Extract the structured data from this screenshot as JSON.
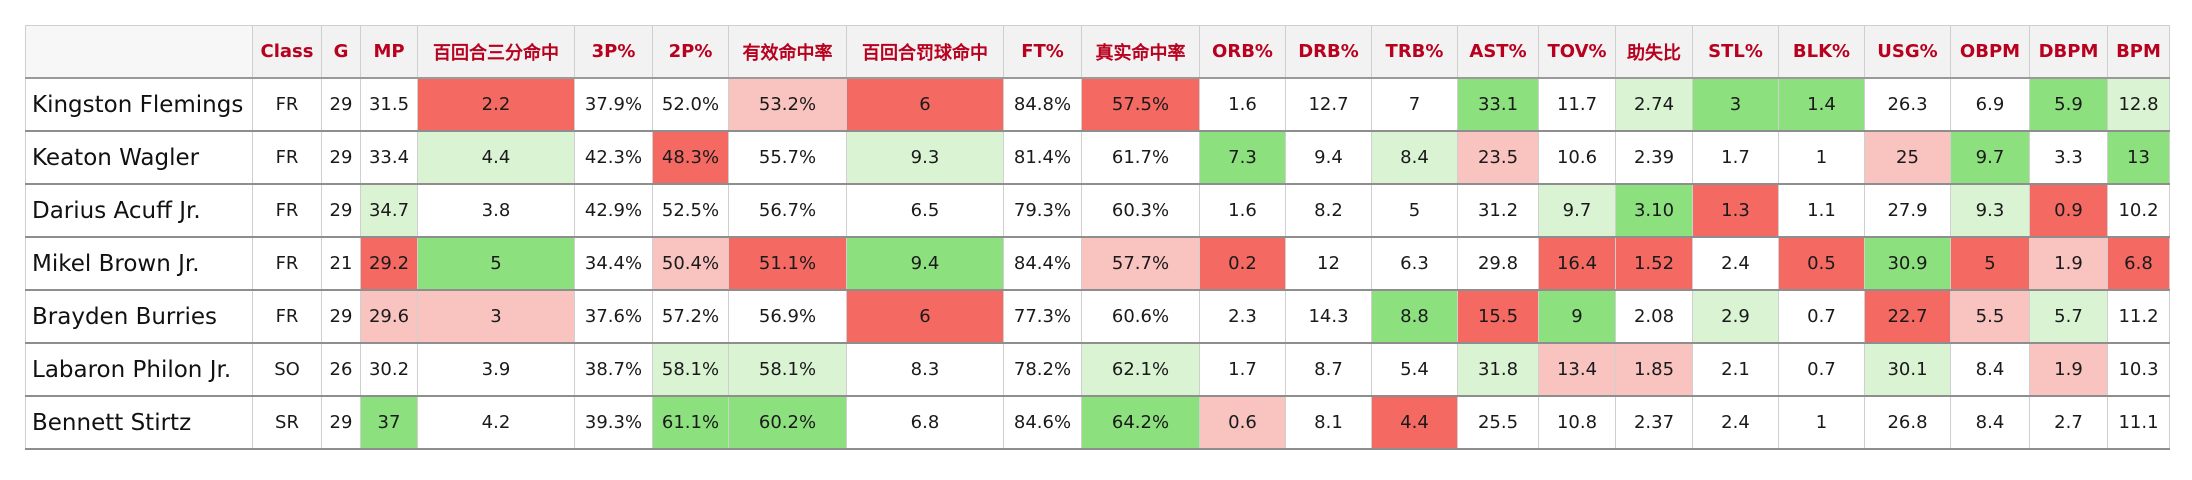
{
  "table": {
    "columns": [
      "Class",
      "G",
      "MP",
      "百回合三分命中",
      "3P%",
      "2P%",
      "有效命中率",
      "百回合罚球命中",
      "FT%",
      "真实命中率",
      "ORB%",
      "DRB%",
      "TRB%",
      "AST%",
      "TOV%",
      "助失比",
      "STL%",
      "BLK%",
      "USG%",
      "OBPM",
      "DBPM",
      "BPM"
    ],
    "rows": [
      {
        "name": "Kingston Flemings",
        "cells": [
          {
            "v": "FR",
            "c": ""
          },
          {
            "v": "29",
            "c": ""
          },
          {
            "v": "31.5",
            "c": ""
          },
          {
            "v": "2.2",
            "c": "r1"
          },
          {
            "v": "37.9%",
            "c": ""
          },
          {
            "v": "52.0%",
            "c": ""
          },
          {
            "v": "53.2%",
            "c": "r2"
          },
          {
            "v": "6",
            "c": "r1"
          },
          {
            "v": "84.8%",
            "c": ""
          },
          {
            "v": "57.5%",
            "c": "r1"
          },
          {
            "v": "1.6",
            "c": ""
          },
          {
            "v": "12.7",
            "c": ""
          },
          {
            "v": "7",
            "c": ""
          },
          {
            "v": "33.1",
            "c": "g1"
          },
          {
            "v": "11.7",
            "c": ""
          },
          {
            "v": "2.74",
            "c": "g2"
          },
          {
            "v": "3",
            "c": "g1"
          },
          {
            "v": "1.4",
            "c": "g1"
          },
          {
            "v": "26.3",
            "c": ""
          },
          {
            "v": "6.9",
            "c": ""
          },
          {
            "v": "5.9",
            "c": "g1"
          },
          {
            "v": "12.8",
            "c": "g2"
          }
        ]
      },
      {
        "name": "Keaton Wagler",
        "cells": [
          {
            "v": "FR",
            "c": ""
          },
          {
            "v": "29",
            "c": ""
          },
          {
            "v": "33.4",
            "c": ""
          },
          {
            "v": "4.4",
            "c": "g2"
          },
          {
            "v": "42.3%",
            "c": ""
          },
          {
            "v": "48.3%",
            "c": "r1"
          },
          {
            "v": "55.7%",
            "c": ""
          },
          {
            "v": "9.3",
            "c": "g2"
          },
          {
            "v": "81.4%",
            "c": ""
          },
          {
            "v": "61.7%",
            "c": ""
          },
          {
            "v": "7.3",
            "c": "g1"
          },
          {
            "v": "9.4",
            "c": ""
          },
          {
            "v": "8.4",
            "c": "g2"
          },
          {
            "v": "23.5",
            "c": "r2"
          },
          {
            "v": "10.6",
            "c": ""
          },
          {
            "v": "2.39",
            "c": ""
          },
          {
            "v": "1.7",
            "c": ""
          },
          {
            "v": "1",
            "c": ""
          },
          {
            "v": "25",
            "c": "r2"
          },
          {
            "v": "9.7",
            "c": "g1"
          },
          {
            "v": "3.3",
            "c": ""
          },
          {
            "v": "13",
            "c": "g1"
          }
        ]
      },
      {
        "name": "Darius Acuff Jr.",
        "cells": [
          {
            "v": "FR",
            "c": ""
          },
          {
            "v": "29",
            "c": ""
          },
          {
            "v": "34.7",
            "c": "g2"
          },
          {
            "v": "3.8",
            "c": ""
          },
          {
            "v": "42.9%",
            "c": ""
          },
          {
            "v": "52.5%",
            "c": ""
          },
          {
            "v": "56.7%",
            "c": ""
          },
          {
            "v": "6.5",
            "c": ""
          },
          {
            "v": "79.3%",
            "c": ""
          },
          {
            "v": "60.3%",
            "c": ""
          },
          {
            "v": "1.6",
            "c": ""
          },
          {
            "v": "8.2",
            "c": ""
          },
          {
            "v": "5",
            "c": ""
          },
          {
            "v": "31.2",
            "c": ""
          },
          {
            "v": "9.7",
            "c": "g2"
          },
          {
            "v": "3.10",
            "c": "g1"
          },
          {
            "v": "1.3",
            "c": "r1"
          },
          {
            "v": "1.1",
            "c": ""
          },
          {
            "v": "27.9",
            "c": ""
          },
          {
            "v": "9.3",
            "c": "g2"
          },
          {
            "v": "0.9",
            "c": "r1"
          },
          {
            "v": "10.2",
            "c": ""
          }
        ]
      },
      {
        "name": "Mikel Brown Jr.",
        "cells": [
          {
            "v": "FR",
            "c": ""
          },
          {
            "v": "21",
            "c": ""
          },
          {
            "v": "29.2",
            "c": "r1"
          },
          {
            "v": "5",
            "c": "g1"
          },
          {
            "v": "34.4%",
            "c": ""
          },
          {
            "v": "50.4%",
            "c": "r2"
          },
          {
            "v": "51.1%",
            "c": "r1"
          },
          {
            "v": "9.4",
            "c": "g1"
          },
          {
            "v": "84.4%",
            "c": ""
          },
          {
            "v": "57.7%",
            "c": "r2"
          },
          {
            "v": "0.2",
            "c": "r1"
          },
          {
            "v": "12",
            "c": ""
          },
          {
            "v": "6.3",
            "c": ""
          },
          {
            "v": "29.8",
            "c": ""
          },
          {
            "v": "16.4",
            "c": "r1"
          },
          {
            "v": "1.52",
            "c": "r1"
          },
          {
            "v": "2.4",
            "c": ""
          },
          {
            "v": "0.5",
            "c": "r1"
          },
          {
            "v": "30.9",
            "c": "g1"
          },
          {
            "v": "5",
            "c": "r1"
          },
          {
            "v": "1.9",
            "c": "r2"
          },
          {
            "v": "6.8",
            "c": "r1"
          }
        ]
      },
      {
        "name": "Brayden Burries",
        "cells": [
          {
            "v": "FR",
            "c": ""
          },
          {
            "v": "29",
            "c": ""
          },
          {
            "v": "29.6",
            "c": "r2"
          },
          {
            "v": "3",
            "c": "r2"
          },
          {
            "v": "37.6%",
            "c": ""
          },
          {
            "v": "57.2%",
            "c": ""
          },
          {
            "v": "56.9%",
            "c": ""
          },
          {
            "v": "6",
            "c": "r1"
          },
          {
            "v": "77.3%",
            "c": ""
          },
          {
            "v": "60.6%",
            "c": ""
          },
          {
            "v": "2.3",
            "c": ""
          },
          {
            "v": "14.3",
            "c": ""
          },
          {
            "v": "8.8",
            "c": "g1"
          },
          {
            "v": "15.5",
            "c": "r1"
          },
          {
            "v": "9",
            "c": "g1"
          },
          {
            "v": "2.08",
            "c": ""
          },
          {
            "v": "2.9",
            "c": "g2"
          },
          {
            "v": "0.7",
            "c": ""
          },
          {
            "v": "22.7",
            "c": "r1"
          },
          {
            "v": "5.5",
            "c": "r2"
          },
          {
            "v": "5.7",
            "c": "g2"
          },
          {
            "v": "11.2",
            "c": ""
          }
        ]
      },
      {
        "name": "Labaron Philon Jr.",
        "cells": [
          {
            "v": "SO",
            "c": ""
          },
          {
            "v": "26",
            "c": ""
          },
          {
            "v": "30.2",
            "c": ""
          },
          {
            "v": "3.9",
            "c": ""
          },
          {
            "v": "38.7%",
            "c": ""
          },
          {
            "v": "58.1%",
            "c": "g2"
          },
          {
            "v": "58.1%",
            "c": "g2"
          },
          {
            "v": "8.3",
            "c": ""
          },
          {
            "v": "78.2%",
            "c": ""
          },
          {
            "v": "62.1%",
            "c": "g2"
          },
          {
            "v": "1.7",
            "c": ""
          },
          {
            "v": "8.7",
            "c": ""
          },
          {
            "v": "5.4",
            "c": ""
          },
          {
            "v": "31.8",
            "c": "g2"
          },
          {
            "v": "13.4",
            "c": "r2"
          },
          {
            "v": "1.85",
            "c": "r2"
          },
          {
            "v": "2.1",
            "c": ""
          },
          {
            "v": "0.7",
            "c": ""
          },
          {
            "v": "30.1",
            "c": "g2"
          },
          {
            "v": "8.4",
            "c": ""
          },
          {
            "v": "1.9",
            "c": "r2"
          },
          {
            "v": "10.3",
            "c": ""
          }
        ]
      },
      {
        "name": "Bennett Stirtz",
        "cells": [
          {
            "v": "SR",
            "c": ""
          },
          {
            "v": "29",
            "c": ""
          },
          {
            "v": "37",
            "c": "g1"
          },
          {
            "v": "4.2",
            "c": ""
          },
          {
            "v": "39.3%",
            "c": ""
          },
          {
            "v": "61.1%",
            "c": "g1"
          },
          {
            "v": "60.2%",
            "c": "g1"
          },
          {
            "v": "6.8",
            "c": ""
          },
          {
            "v": "84.6%",
            "c": ""
          },
          {
            "v": "64.2%",
            "c": "g1"
          },
          {
            "v": "0.6",
            "c": "r2"
          },
          {
            "v": "8.1",
            "c": ""
          },
          {
            "v": "4.4",
            "c": "r1"
          },
          {
            "v": "25.5",
            "c": ""
          },
          {
            "v": "10.8",
            "c": ""
          },
          {
            "v": "2.37",
            "c": ""
          },
          {
            "v": "2.4",
            "c": ""
          },
          {
            "v": "1",
            "c": ""
          },
          {
            "v": "26.8",
            "c": ""
          },
          {
            "v": "8.4",
            "c": ""
          },
          {
            "v": "2.7",
            "c": ""
          },
          {
            "v": "11.1",
            "c": ""
          }
        ]
      }
    ]
  },
  "colors": {
    "header_text": "#b8001f",
    "header_bg": "#f2f2f2",
    "strong_green": "#8ce07e",
    "light_green": "#d9f3d3",
    "strong_red": "#f56963",
    "light_red": "#f9c3c0"
  }
}
